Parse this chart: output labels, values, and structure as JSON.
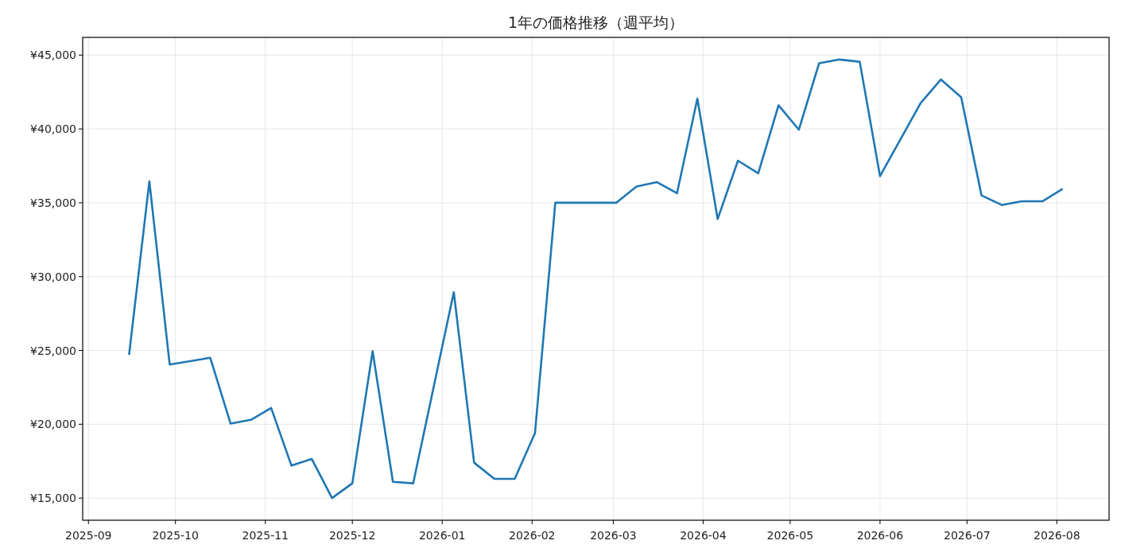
{
  "chart_data": {
    "type": "line",
    "title": "1年の価格推移（週平均）",
    "x": [
      "2025-09-15",
      "2025-09-22",
      "2025-09-29",
      "2025-10-13",
      "2025-10-20",
      "2025-10-27",
      "2025-11-03",
      "2025-11-10",
      "2025-11-17",
      "2025-11-24",
      "2025-12-01",
      "2025-12-08",
      "2025-12-15",
      "2025-12-22",
      "2026-01-05",
      "2026-01-12",
      "2026-01-19",
      "2026-01-26",
      "2026-02-02",
      "2026-02-09",
      "2026-02-16",
      "2026-02-23",
      "2026-03-02",
      "2026-03-09",
      "2026-03-16",
      "2026-03-23",
      "2026-03-30",
      "2026-04-06",
      "2026-04-13",
      "2026-04-20",
      "2026-04-27",
      "2026-05-04",
      "2026-05-11",
      "2026-05-18",
      "2026-05-25",
      "2026-06-01",
      "2026-06-15",
      "2026-06-22",
      "2026-06-29",
      "2026-07-06",
      "2026-07-13",
      "2026-07-20",
      "2026-07-27",
      "2026-08-03"
    ],
    "series": [
      {
        "color": "#1f77b4",
        "values": [
          24700,
          36450,
          24050,
          24500,
          20050,
          20300,
          21100,
          17200,
          17650,
          15000,
          16000,
          24950,
          16100,
          16000,
          28950,
          17400,
          16300,
          16300,
          19400,
          35000,
          35000,
          35000,
          35000,
          36100,
          36400,
          35650,
          42050,
          33900,
          37850,
          37000,
          41600,
          39950,
          44450,
          44700,
          44550,
          36800,
          41750,
          43350,
          42150,
          35500,
          34850,
          35100,
          35100,
          35950
        ]
      }
    ],
    "xlim": [
      "2025-08-30",
      "2026-08-19"
    ],
    "xticks": [
      {
        "value": "2025-09-01",
        "label": "2025-09"
      },
      {
        "value": "2025-10-01",
        "label": "2025-10"
      },
      {
        "value": "2025-11-01",
        "label": "2025-11"
      },
      {
        "value": "2025-12-01",
        "label": "2025-12"
      },
      {
        "value": "2026-01-01",
        "label": "2026-01"
      },
      {
        "value": "2026-02-01",
        "label": "2026-02"
      },
      {
        "value": "2026-03-01",
        "label": "2026-03"
      },
      {
        "value": "2026-04-01",
        "label": "2026-04"
      },
      {
        "value": "2026-05-01",
        "label": "2026-05"
      },
      {
        "value": "2026-06-01",
        "label": "2026-06"
      },
      {
        "value": "2026-07-01",
        "label": "2026-07"
      },
      {
        "value": "2026-08-01",
        "label": "2026-08"
      }
    ],
    "ylim": [
      13500,
      46200
    ],
    "yticks": [
      {
        "value": 15000,
        "label": "¥15,000"
      },
      {
        "value": 20000,
        "label": "¥20,000"
      },
      {
        "value": 25000,
        "label": "¥25,000"
      },
      {
        "value": 30000,
        "label": "¥30,000"
      },
      {
        "value": 35000,
        "label": "¥35,000"
      },
      {
        "value": 40000,
        "label": "¥40,000"
      },
      {
        "value": 45000,
        "label": "¥45,000"
      }
    ],
    "grid": true,
    "line_style": "solid",
    "marker": "none"
  }
}
